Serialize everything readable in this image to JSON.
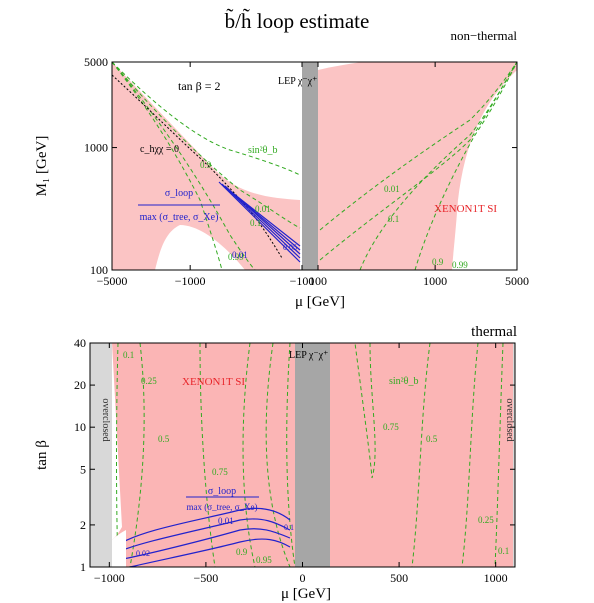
{
  "figure_title": "b̃/h̃   loop estimate",
  "chart_data": [
    {
      "type": "region-contour",
      "panel_label": "non−thermal",
      "xlabel": "μ  [GeV]",
      "ylabel": "M₁  [GeV]",
      "x_scale": "symlog",
      "y_scale": "log",
      "xlim": [
        -5000,
        5000
      ],
      "ylim": [
        100,
        5000
      ],
      "x_ticks": [
        {
          "value": -5000,
          "label": "−5000"
        },
        {
          "value": -1000,
          "label": "−1000"
        },
        {
          "value": -100,
          "label": "−100"
        },
        {
          "value": 100,
          "label": "100"
        },
        {
          "value": 1000,
          "label": "1000"
        },
        {
          "value": 5000,
          "label": "5000"
        }
      ],
      "y_ticks": [
        {
          "value": 100,
          "label": "100"
        },
        {
          "value": 1000,
          "label": "1000"
        },
        {
          "value": 5000,
          "label": "5000"
        }
      ],
      "annotations": [
        {
          "text": "tan β = 2",
          "color": "#000000"
        },
        {
          "text": "LEP χ⁻χ⁺",
          "color": "#000000"
        },
        {
          "text": "c_hχχ = 0",
          "color": "#000000"
        },
        {
          "text": "sin²θ_b",
          "color": "#33aa22"
        },
        {
          "text": "XENON1T SI",
          "color": "#e8252a"
        },
        {
          "text": "σ_loop",
          "color": "#2222cc"
        },
        {
          "text": "max (σ_tree, σ_Xe)",
          "color": "#2222cc"
        }
      ],
      "contour_labels": [
        {
          "text": "0.9",
          "color": "#33aa22"
        },
        {
          "text": "0.01",
          "color": "#33aa22"
        },
        {
          "text": "0.1",
          "color": "#33aa22"
        },
        {
          "text": "0.99",
          "color": "#33aa22"
        },
        {
          "text": "0.01",
          "color": "#33aa22"
        },
        {
          "text": "0.1",
          "color": "#33aa22"
        },
        {
          "text": "0.9",
          "color": "#33aa22"
        },
        {
          "text": "0.99",
          "color": "#33aa22"
        },
        {
          "text": "0.01",
          "color": "#2222cc"
        },
        {
          "text": "0.05",
          "color": "#2222cc"
        }
      ],
      "colors": {
        "excluded": "#fbc4c4",
        "lep": "#a6a6a6",
        "contour": "#33aa22",
        "loop": "#2222cc"
      }
    },
    {
      "type": "region-contour",
      "panel_label": "thermal",
      "xlabel": "μ  [GeV]",
      "ylabel": "tan β",
      "x_scale": "linear",
      "y_scale": "log",
      "xlim": [
        -1100,
        1100
      ],
      "ylim": [
        1,
        40
      ],
      "x_ticks": [
        {
          "value": -1000,
          "label": "−1000"
        },
        {
          "value": -500,
          "label": "−500"
        },
        {
          "value": 0,
          "label": "0"
        },
        {
          "value": 500,
          "label": "500"
        },
        {
          "value": 1000,
          "label": "1000"
        }
      ],
      "y_ticks": [
        {
          "value": 1,
          "label": "1"
        },
        {
          "value": 2,
          "label": "2"
        },
        {
          "value": 5,
          "label": "5"
        },
        {
          "value": 10,
          "label": "10"
        },
        {
          "value": 20,
          "label": "20"
        },
        {
          "value": 40,
          "label": "40"
        }
      ],
      "annotations": [
        {
          "text": "overclosed",
          "color": "#333333"
        },
        {
          "text": "overclosed",
          "color": "#333333"
        },
        {
          "text": "XENON1T SI",
          "color": "#e8252a"
        },
        {
          "text": "LEP χ⁻χ⁺",
          "color": "#000000"
        },
        {
          "text": "sin²θ_b",
          "color": "#33aa22"
        },
        {
          "text": "σ_loop",
          "color": "#2222cc"
        },
        {
          "text": "max (σ_tree, σ_Xe)",
          "color": "#2222cc"
        }
      ],
      "contour_labels": [
        {
          "text": "0.1",
          "color": "#33aa22"
        },
        {
          "text": "0.25",
          "color": "#33aa22"
        },
        {
          "text": "0.5",
          "color": "#33aa22"
        },
        {
          "text": "0.75",
          "color": "#33aa22"
        },
        {
          "text": "0.9",
          "color": "#33aa22"
        },
        {
          "text": "0.95",
          "color": "#33aa22"
        },
        {
          "text": "0.75",
          "color": "#33aa22"
        },
        {
          "text": "0.5",
          "color": "#33aa22"
        },
        {
          "text": "0.25",
          "color": "#33aa22"
        },
        {
          "text": "0.1",
          "color": "#33aa22"
        },
        {
          "text": "0.01",
          "color": "#2222cc"
        },
        {
          "text": "0.02",
          "color": "#2222cc"
        },
        {
          "text": "0.1",
          "color": "#2222cc"
        }
      ],
      "colors": {
        "excluded": "#fbb5b5",
        "overclosed": "#d8d8d8",
        "lep": "#a6a6a6",
        "contour": "#33aa22",
        "loop": "#2222cc"
      }
    }
  ]
}
